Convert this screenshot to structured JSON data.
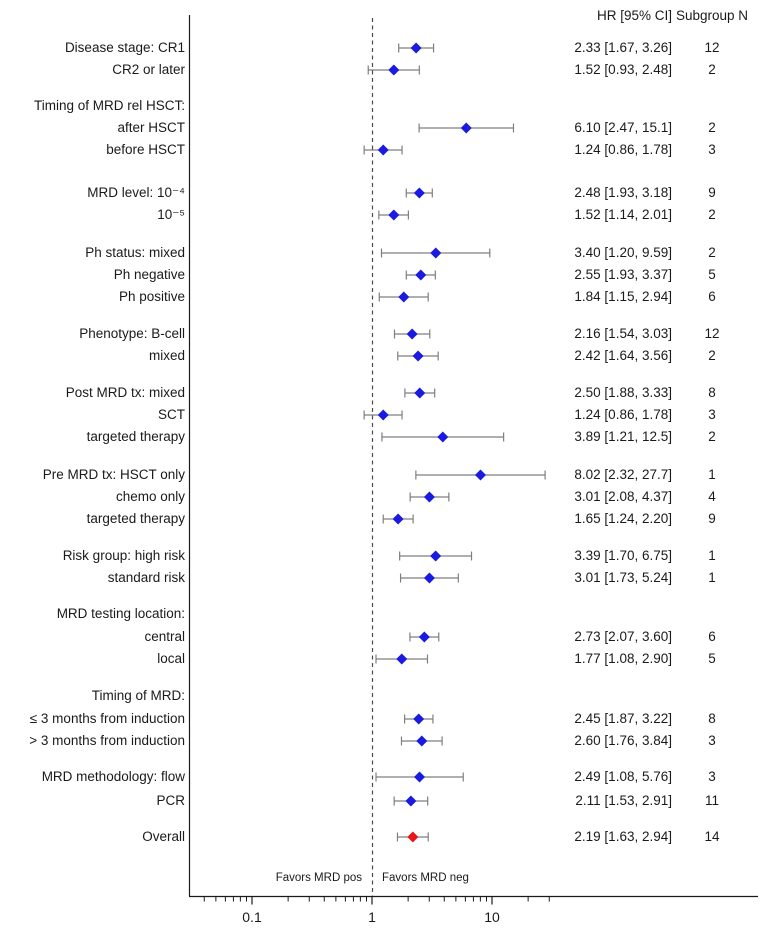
{
  "chart_data": {
    "type": "forest",
    "x_scale": "log10",
    "columns": {
      "hr_header": "HR [95% CI]",
      "n_header": "Subgroup N"
    },
    "axis": {
      "major_ticks": [
        0.1,
        1,
        10
      ],
      "major_tick_labels": [
        "0.1",
        "1",
        "10"
      ],
      "minor_ticks": [
        0.04,
        0.05,
        0.06,
        0.07,
        0.08,
        0.09,
        0.2,
        0.3,
        0.4,
        0.5,
        0.6,
        0.7,
        0.8,
        0.9,
        2,
        3,
        4,
        5,
        6,
        7,
        8,
        9,
        20,
        30
      ],
      "reference_line": 1,
      "favors_left": "Favors MRD pos",
      "favors_right": "Favors MRD neg"
    },
    "groups": [
      {
        "rows": [
          {
            "label": "Disease stage: CR1",
            "est": 2.33,
            "lo": 1.67,
            "hi": 3.26,
            "text": "2.33 [1.67, 3.26]",
            "n": "12"
          },
          {
            "label": "CR2 or later",
            "est": 1.52,
            "lo": 0.93,
            "hi": 2.48,
            "text": "1.52 [0.93, 2.48]",
            "n": "2"
          }
        ]
      },
      {
        "rows": [
          {
            "label": "Timing of MRD rel HSCT:",
            "header": true
          },
          {
            "label": "after HSCT",
            "est": 6.1,
            "lo": 2.47,
            "hi": 15.1,
            "text": "6.10 [2.47, 15.1]",
            "n": "2"
          },
          {
            "label": "before HSCT",
            "est": 1.24,
            "lo": 0.86,
            "hi": 1.78,
            "text": "1.24 [0.86, 1.78]",
            "n": "3"
          }
        ]
      },
      {
        "rows": [
          {
            "label": "MRD level: 10⁻⁴",
            "est": 2.48,
            "lo": 1.93,
            "hi": 3.18,
            "text": "2.48 [1.93, 3.18]",
            "n": "9"
          },
          {
            "label": "10⁻⁵",
            "est": 1.52,
            "lo": 1.14,
            "hi": 2.01,
            "text": "1.52 [1.14, 2.01]",
            "n": "2"
          }
        ]
      },
      {
        "rows": [
          {
            "label": "Ph status: mixed",
            "est": 3.4,
            "lo": 1.2,
            "hi": 9.59,
            "text": "3.40 [1.20, 9.59]",
            "n": "2"
          },
          {
            "label": "Ph negative",
            "est": 2.55,
            "lo": 1.93,
            "hi": 3.37,
            "text": "2.55 [1.93, 3.37]",
            "n": "5"
          },
          {
            "label": "Ph positive",
            "est": 1.84,
            "lo": 1.15,
            "hi": 2.94,
            "text": "1.84 [1.15, 2.94]",
            "n": "6"
          }
        ]
      },
      {
        "rows": [
          {
            "label": "Phenotype: B-cell",
            "est": 2.16,
            "lo": 1.54,
            "hi": 3.03,
            "text": "2.16 [1.54, 3.03]",
            "n": "12"
          },
          {
            "label": "mixed",
            "est": 2.42,
            "lo": 1.64,
            "hi": 3.56,
            "text": "2.42 [1.64, 3.56]",
            "n": "2"
          }
        ]
      },
      {
        "rows": [
          {
            "label": "Post MRD tx: mixed",
            "est": 2.5,
            "lo": 1.88,
            "hi": 3.33,
            "text": "2.50 [1.88, 3.33]",
            "n": "8"
          },
          {
            "label": "SCT",
            "est": 1.24,
            "lo": 0.86,
            "hi": 1.78,
            "text": "1.24 [0.86, 1.78]",
            "n": "3"
          },
          {
            "label": "targeted therapy",
            "est": 3.89,
            "lo": 1.21,
            "hi": 12.5,
            "text": "3.89 [1.21, 12.5]",
            "n": "2"
          }
        ]
      },
      {
        "rows": [
          {
            "label": "Pre MRD tx: HSCT only",
            "est": 8.02,
            "lo": 2.32,
            "hi": 27.7,
            "text": "8.02 [2.32, 27.7]",
            "n": "1"
          },
          {
            "label": "chemo only",
            "est": 3.01,
            "lo": 2.08,
            "hi": 4.37,
            "text": "3.01 [2.08, 4.37]",
            "n": "4"
          },
          {
            "label": "targeted therapy",
            "est": 1.65,
            "lo": 1.24,
            "hi": 2.2,
            "text": "1.65 [1.24, 2.20]",
            "n": "9"
          }
        ]
      },
      {
        "rows": [
          {
            "label": "Risk group: high risk",
            "est": 3.39,
            "lo": 1.7,
            "hi": 6.75,
            "text": "3.39 [1.70, 6.75]",
            "n": "1"
          },
          {
            "label": "standard risk",
            "est": 3.01,
            "lo": 1.73,
            "hi": 5.24,
            "text": "3.01 [1.73, 5.24]",
            "n": "1"
          }
        ]
      },
      {
        "rows": [
          {
            "label": "MRD testing location:",
            "header": true
          },
          {
            "label": "central",
            "est": 2.73,
            "lo": 2.07,
            "hi": 3.6,
            "text": "2.73 [2.07, 3.60]",
            "n": "6"
          },
          {
            "label": "local",
            "est": 1.77,
            "lo": 1.08,
            "hi": 2.9,
            "text": "1.77 [1.08, 2.90]",
            "n": "5"
          }
        ]
      },
      {
        "rows": [
          {
            "label": "Timing of MRD:",
            "header": true
          },
          {
            "label": "≤ 3 months from induction",
            "est": 2.45,
            "lo": 1.87,
            "hi": 3.22,
            "text": "2.45 [1.87, 3.22]",
            "n": "8"
          },
          {
            "label": "> 3 months from induction",
            "est": 2.6,
            "lo": 1.76,
            "hi": 3.84,
            "text": "2.60 [1.76, 3.84]",
            "n": "3"
          }
        ]
      },
      {
        "rows": [
          {
            "label": "MRD methodology: flow",
            "est": 2.49,
            "lo": 1.08,
            "hi": 5.76,
            "text": "2.49 [1.08, 5.76]",
            "n": "3"
          },
          {
            "label": "PCR",
            "est": 2.11,
            "lo": 1.53,
            "hi": 2.91,
            "text": "2.11 [1.53, 2.91]",
            "n": "11"
          }
        ]
      },
      {
        "rows": [
          {
            "label": "Overall",
            "est": 2.19,
            "lo": 1.63,
            "hi": 2.94,
            "text": "2.19 [1.63, 2.94]",
            "n": "14",
            "summary": true
          }
        ]
      }
    ]
  },
  "colors": {
    "effect_diamond": "#1a1ae0",
    "summary_diamond": "#e81616",
    "whisker": "#7f7f7f",
    "axis": "#1a1a1a",
    "reference_line": "#4a4a4a"
  }
}
